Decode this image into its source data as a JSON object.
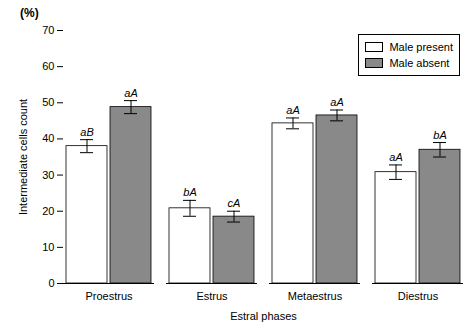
{
  "chart_data": {
    "type": "bar",
    "categories": [
      "Proestrus",
      "Estrus",
      "Metaestrus",
      "Diestrus"
    ],
    "series": [
      {
        "name": "Male present",
        "color": "#ffffff",
        "values": [
          38.0,
          20.8,
          44.3,
          30.8
        ],
        "errors": [
          1.8,
          2.2,
          1.5,
          2.0
        ],
        "annotations": [
          "aB",
          "bA",
          "aA",
          "aA"
        ]
      },
      {
        "name": "Male absent",
        "color": "#898989",
        "values": [
          48.8,
          18.5,
          46.5,
          37.0
        ],
        "errors": [
          1.8,
          1.5,
          1.5,
          2.0
        ],
        "annotations": [
          "aA",
          "cA",
          "aA",
          "bA"
        ]
      }
    ],
    "xlabel": "Estral phases",
    "ylabel": "Intermediate cells count",
    "annotations": [
      "(%)"
    ],
    "ylim": [
      0,
      70
    ],
    "yticks": [
      0,
      10,
      20,
      30,
      40,
      50,
      60,
      70
    ],
    "legend": "upper right",
    "grid": false
  }
}
